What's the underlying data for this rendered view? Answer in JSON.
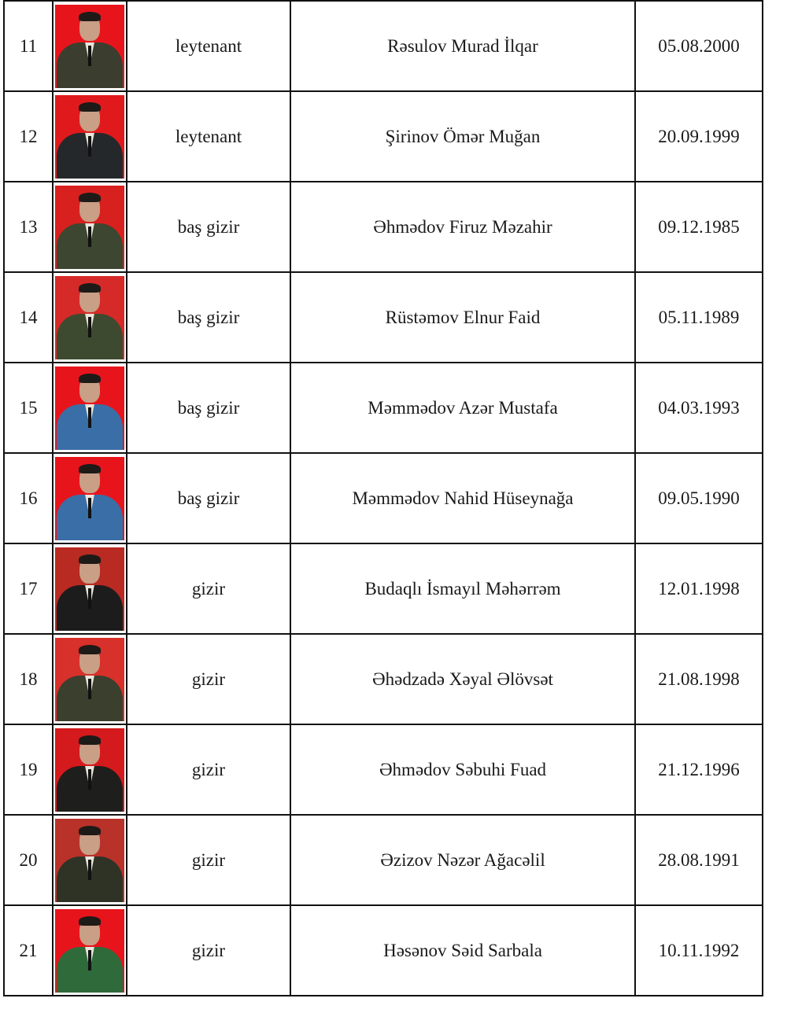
{
  "rows": [
    {
      "no": "11",
      "rank": "leytenant",
      "name": "Rəsulov Murad İlqar",
      "dob": "05.08.2000",
      "photo": {
        "background": "#e8141c",
        "uniform": "#3b3e2e"
      }
    },
    {
      "no": "12",
      "rank": "leytenant",
      "name": "Şirinov Ömər Muğan",
      "dob": "20.09.1999",
      "photo": {
        "background": "#e01a1c",
        "uniform": "#25282a"
      }
    },
    {
      "no": "13",
      "rank": "baş gizir",
      "name": "Əhmədov Firuz  Məzahir",
      "dob": "09.12.1985",
      "photo": {
        "background": "#d8201e",
        "uniform": "#3c4630"
      }
    },
    {
      "no": "14",
      "rank": "baş gizir",
      "name": "Rüstəmov Elnur Faid",
      "dob": "05.11.1989",
      "photo": {
        "background": "#d52a28",
        "uniform": "#3e4a2f"
      }
    },
    {
      "no": "15",
      "rank": "baş gizir",
      "name": "Məmmədov Azər Mustafa",
      "dob": "04.03.1993",
      "photo": {
        "background": "#e8141c",
        "uniform": "#3a6ea6"
      }
    },
    {
      "no": "16",
      "rank": "baş gizir",
      "name": "Məmmədov Nahid Hüseynağa",
      "dob": "09.05.1990",
      "photo": {
        "background": "#e8141c",
        "uniform": "#3a6ea6"
      }
    },
    {
      "no": "17",
      "rank": "gizir",
      "name": "Budaqlı İsmayıl Məhərrəm",
      "dob": "12.01.1998",
      "photo": {
        "background": "#b82a22",
        "uniform": "#1c1c1c"
      }
    },
    {
      "no": "18",
      "rank": "gizir",
      "name": "Əhədzadə Xəyal Əlövsət",
      "dob": "21.08.1998",
      "photo": {
        "background": "#d8302a",
        "uniform": "#3a3f2e"
      }
    },
    {
      "no": "19",
      "rank": "gizir",
      "name": "Əhmədov Səbuhi Fuad",
      "dob": "21.12.1996",
      "photo": {
        "background": "#d41a1c",
        "uniform": "#1e1e1c"
      }
    },
    {
      "no": "20",
      "rank": "gizir",
      "name": "Əzizov Nəzər Ağacəlil",
      "dob": "28.08.1991",
      "photo": {
        "background": "#b8322a",
        "uniform": "#2e3326"
      }
    },
    {
      "no": "21",
      "rank": "gizir",
      "name": "Həsənov Səid Sarbala",
      "dob": "10.11.1992",
      "photo": {
        "background": "#e8141c",
        "uniform": "#2e6a3a"
      }
    }
  ]
}
